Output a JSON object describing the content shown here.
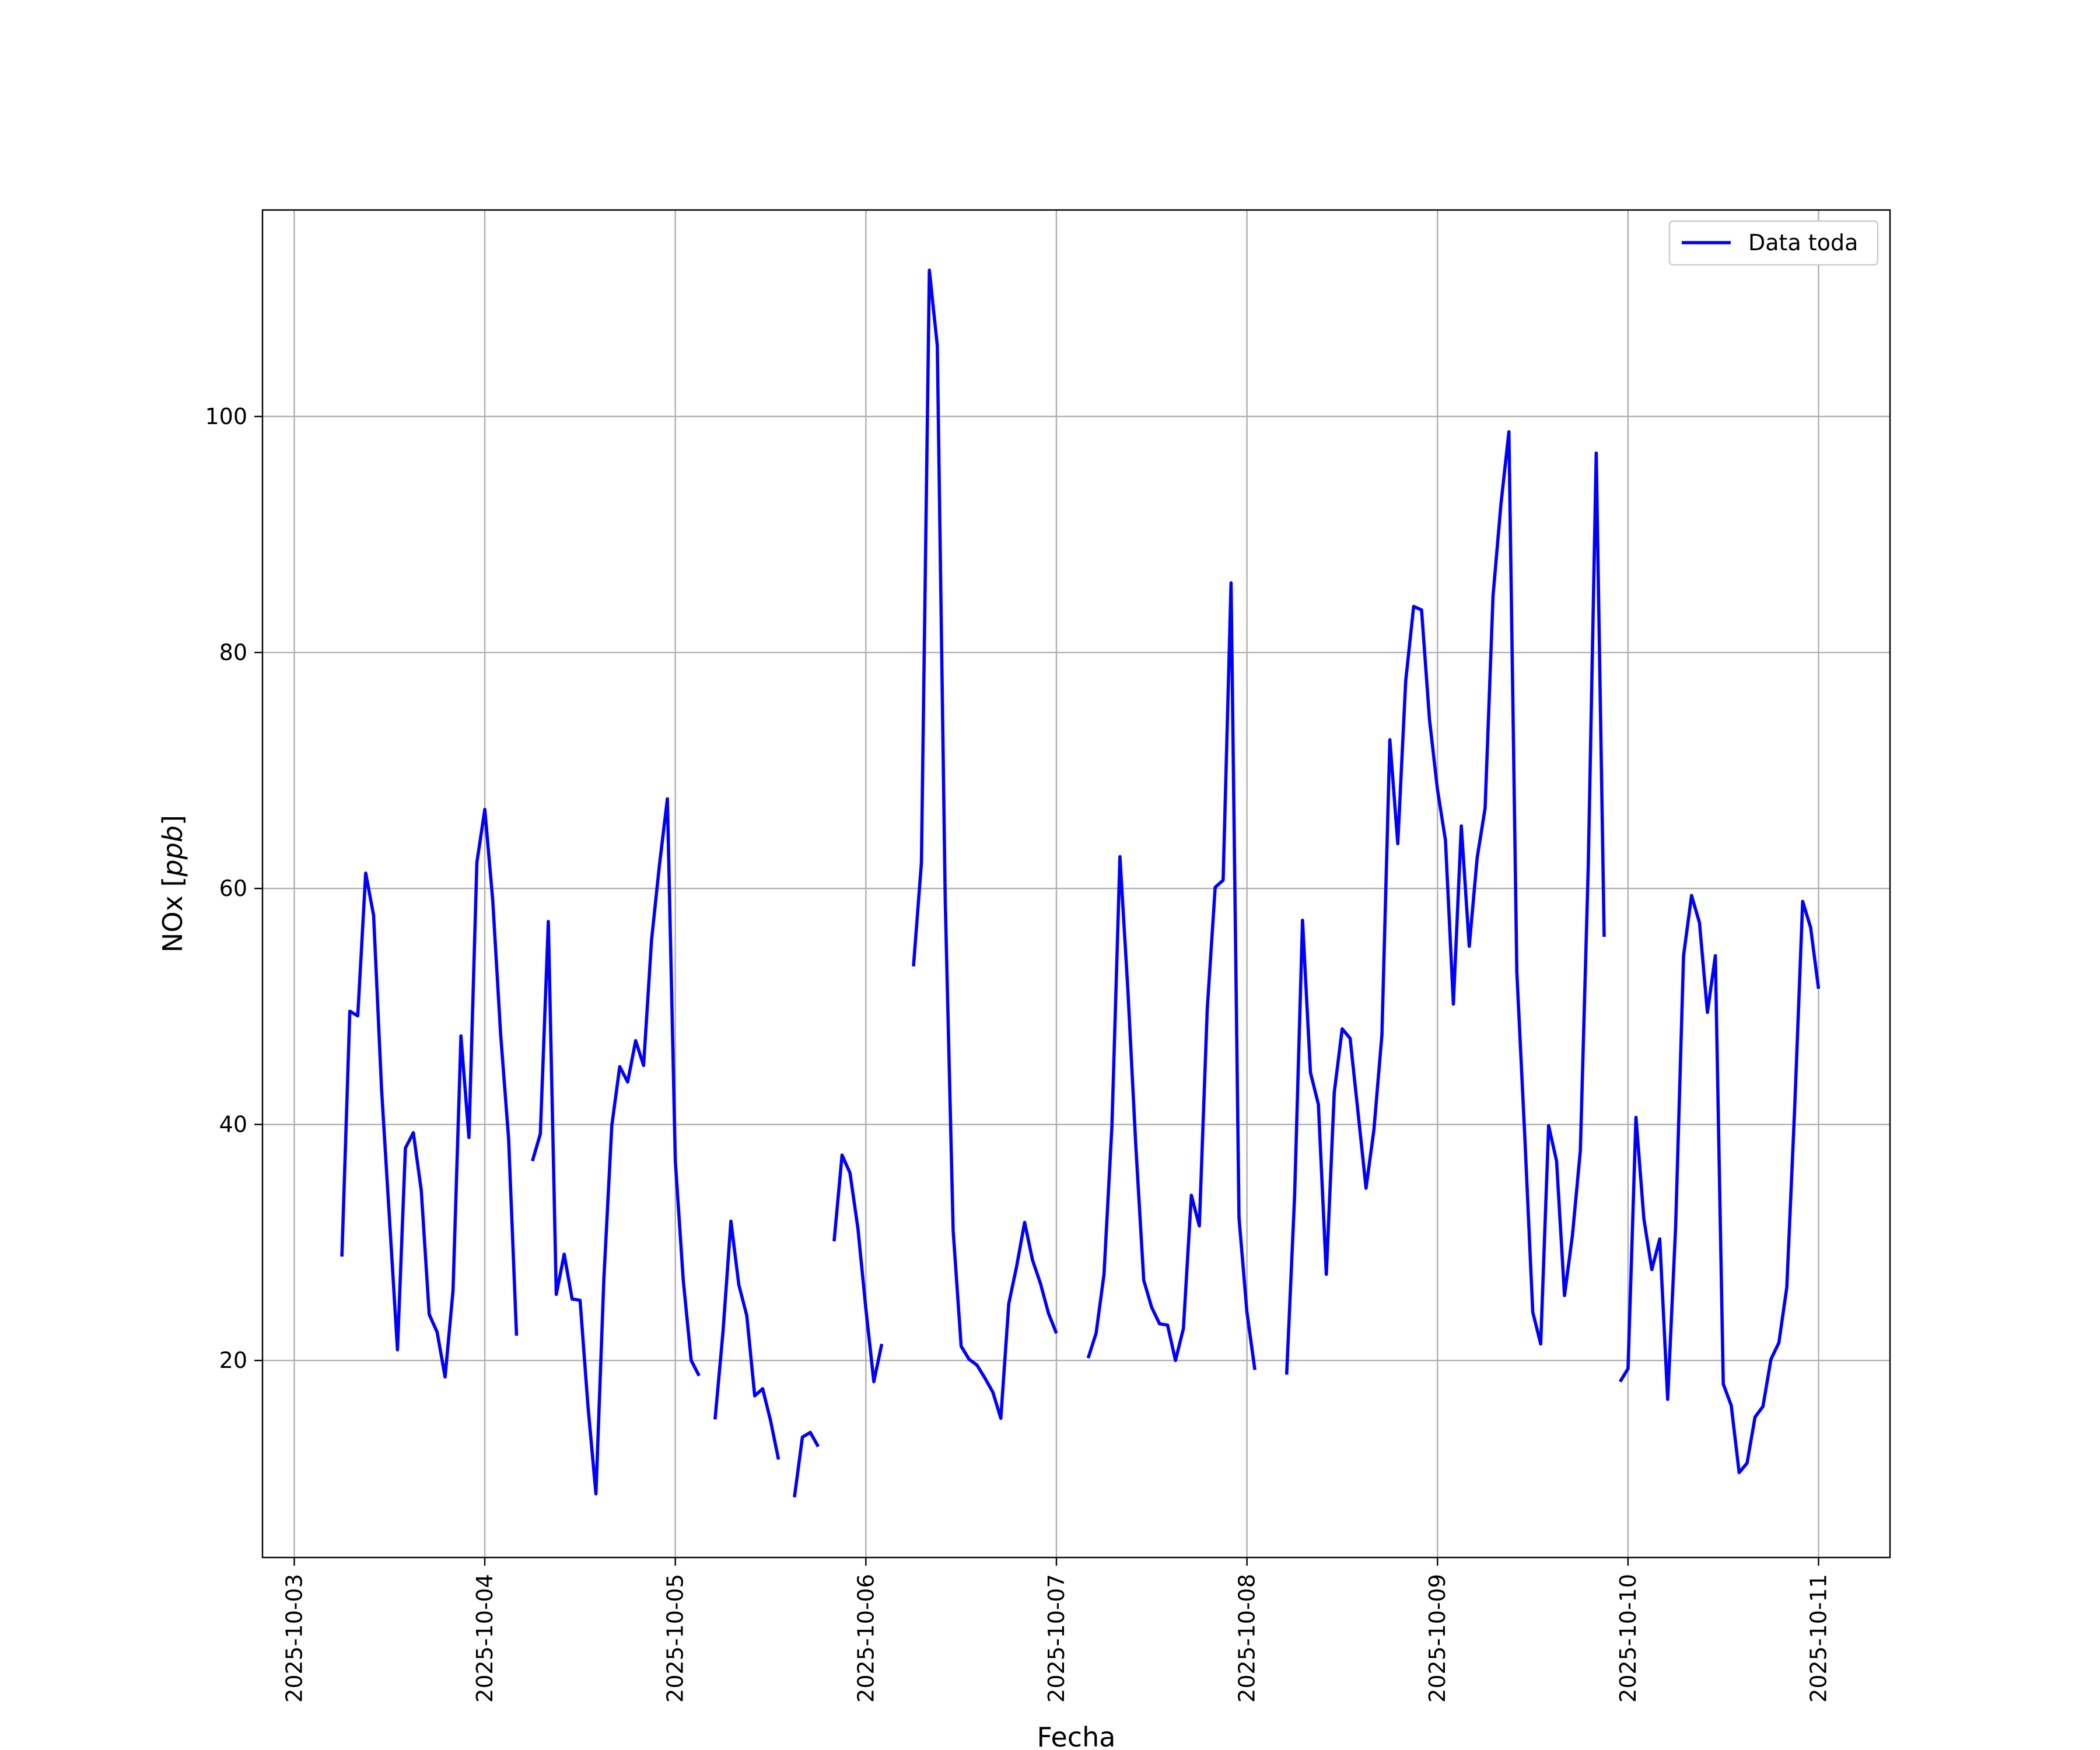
{
  "chart_data": {
    "type": "line",
    "title": "",
    "xlabel": "Fecha",
    "ylabel_main": "NOx [",
    "ylabel_unit": "ppb",
    "ylabel_close": "]",
    "xlim": [
      "2025-10-02T20:00",
      "2025-10-11T09:00"
    ],
    "ylim": [
      3.3,
      117.5
    ],
    "x_ticks": [
      "2025-10-03",
      "2025-10-04",
      "2025-10-05",
      "2025-10-06",
      "2025-10-07",
      "2025-10-08",
      "2025-10-09",
      "2025-10-10",
      "2025-10-11"
    ],
    "y_ticks": [
      20,
      40,
      60,
      80,
      100
    ],
    "y_tick_labels": [
      "20",
      "40",
      "60",
      "80",
      "100"
    ],
    "grid": true,
    "legend": {
      "position": "top-right",
      "entries": [
        "Data toda"
      ]
    },
    "colors": {
      "series": "#0000ff",
      "grid": "#b0b0b0"
    },
    "series": [
      {
        "name": "Data toda",
        "segments": [
          [
            [
              "2025-10-03T06:00",
              28.8
            ],
            [
              "2025-10-03T07:00",
              49.6
            ],
            [
              "2025-10-03T08:00",
              49.2
            ],
            [
              "2025-10-03T09:00",
              61.3
            ],
            [
              "2025-10-03T10:00",
              57.7
            ],
            [
              "2025-10-03T11:00",
              43.0
            ],
            [
              "2025-10-03T13:00",
              20.9
            ],
            [
              "2025-10-03T14:00",
              38.0
            ],
            [
              "2025-10-03T15:00",
              39.3
            ],
            [
              "2025-10-03T16:00",
              34.4
            ],
            [
              "2025-10-03T17:00",
              23.9
            ],
            [
              "2025-10-03T18:00",
              22.4
            ],
            [
              "2025-10-03T19:00",
              18.6
            ],
            [
              "2025-10-03T20:00",
              25.9
            ],
            [
              "2025-10-03T21:00",
              47.5
            ],
            [
              "2025-10-03T22:00",
              38.9
            ],
            [
              "2025-10-03T23:00",
              62.2
            ],
            [
              "2025-10-04T00:00",
              66.7
            ],
            [
              "2025-10-04T01:00",
              59.0
            ],
            [
              "2025-10-04T02:00",
              47.6
            ],
            [
              "2025-10-04T03:00",
              38.8
            ],
            [
              "2025-10-04T04:00",
              22.1
            ]
          ],
          [
            [
              "2025-10-04T06:00",
              36.9
            ],
            [
              "2025-10-04T07:00",
              39.2
            ],
            [
              "2025-10-04T08:00",
              57.2
            ],
            [
              "2025-10-04T09:00",
              25.6
            ],
            [
              "2025-10-04T10:00",
              29.0
            ],
            [
              "2025-10-04T11:00",
              25.2
            ],
            [
              "2025-10-04T12:00",
              25.1
            ],
            [
              "2025-10-04T13:00",
              16.1
            ],
            [
              "2025-10-04T14:00",
              8.7
            ],
            [
              "2025-10-04T15:00",
              26.9
            ],
            [
              "2025-10-04T16:00",
              39.9
            ],
            [
              "2025-10-04T17:00",
              44.9
            ],
            [
              "2025-10-04T18:00",
              43.6
            ],
            [
              "2025-10-04T19:00",
              47.1
            ],
            [
              "2025-10-04T20:00",
              45.0
            ],
            [
              "2025-10-04T21:00",
              55.6
            ],
            [
              "2025-10-04T22:00",
              62.0
            ],
            [
              "2025-10-04T23:00",
              67.6
            ],
            [
              "2025-10-05T00:00",
              36.9
            ],
            [
              "2025-10-05T01:00",
              26.8
            ],
            [
              "2025-10-05T02:00",
              20.0
            ],
            [
              "2025-10-05T03:00",
              18.7
            ]
          ],
          [
            [
              "2025-10-05T05:00",
              15.0
            ],
            [
              "2025-10-05T06:00",
              22.4
            ],
            [
              "2025-10-05T07:00",
              31.8
            ],
            [
              "2025-10-05T08:00",
              26.4
            ],
            [
              "2025-10-05T09:00",
              23.8
            ],
            [
              "2025-10-05T10:00",
              17.0
            ],
            [
              "2025-10-05T11:00",
              17.6
            ],
            [
              "2025-10-05T12:00",
              14.9
            ],
            [
              "2025-10-05T13:00",
              11.6
            ]
          ],
          [
            [
              "2025-10-05T15:00",
              8.4
            ],
            [
              "2025-10-05T16:00",
              13.5
            ],
            [
              "2025-10-05T17:00",
              13.9
            ],
            [
              "2025-10-05T18:00",
              12.7
            ]
          ],
          [
            [
              "2025-10-05T20:00",
              30.1
            ],
            [
              "2025-10-05T21:00",
              37.4
            ],
            [
              "2025-10-05T22:00",
              35.9
            ],
            [
              "2025-10-05T23:00",
              31.2
            ],
            [
              "2025-10-06T00:00",
              24.4
            ],
            [
              "2025-10-06T01:00",
              18.2
            ],
            [
              "2025-10-06T02:00",
              21.4
            ]
          ],
          [
            [
              "2025-10-06T06:00",
              53.4
            ],
            [
              "2025-10-06T07:00",
              62.2
            ],
            [
              "2025-10-06T08:00",
              112.4
            ],
            [
              "2025-10-06T09:00",
              106.0
            ],
            [
              "2025-10-06T10:00",
              59.0
            ],
            [
              "2025-10-06T11:00",
              31.0
            ],
            [
              "2025-10-06T12:00",
              21.2
            ],
            [
              "2025-10-06T13:00",
              20.1
            ],
            [
              "2025-10-06T14:00",
              19.6
            ],
            [
              "2025-10-06T15:00",
              18.5
            ],
            [
              "2025-10-06T16:00",
              17.3
            ],
            [
              "2025-10-06T17:00",
              15.1
            ],
            [
              "2025-10-06T18:00",
              24.8
            ],
            [
              "2025-10-06T19:00",
              28.0
            ],
            [
              "2025-10-06T20:00",
              31.7
            ],
            [
              "2025-10-06T21:00",
              28.5
            ],
            [
              "2025-10-06T22:00",
              26.5
            ],
            [
              "2025-10-06T23:00",
              24.0
            ],
            [
              "2025-10-07T00:00",
              22.3
            ]
          ],
          [
            [
              "2025-10-07T04:00",
              20.2
            ],
            [
              "2025-10-07T05:00",
              22.3
            ],
            [
              "2025-10-07T06:00",
              27.3
            ],
            [
              "2025-10-07T07:00",
              39.9
            ],
            [
              "2025-10-07T08:00",
              62.7
            ],
            [
              "2025-10-07T09:00",
              51.4
            ],
            [
              "2025-10-07T10:00",
              38.2
            ],
            [
              "2025-10-07T11:00",
              26.8
            ],
            [
              "2025-10-07T12:00",
              24.5
            ],
            [
              "2025-10-07T13:00",
              23.1
            ],
            [
              "2025-10-07T14:00",
              23.0
            ],
            [
              "2025-10-07T15:00",
              20.0
            ],
            [
              "2025-10-07T16:00",
              22.7
            ],
            [
              "2025-10-07T17:00",
              34.0
            ],
            [
              "2025-10-07T18:00",
              31.4
            ],
            [
              "2025-10-07T19:00",
              49.8
            ],
            [
              "2025-10-07T20:00",
              60.1
            ],
            [
              "2025-10-07T21:00",
              60.7
            ],
            [
              "2025-10-07T22:00",
              85.9
            ],
            [
              "2025-10-07T23:00",
              32.1
            ],
            [
              "2025-10-08T00:00",
              24.1
            ],
            [
              "2025-10-08T01:00",
              19.2
            ]
          ],
          [
            [
              "2025-10-08T05:00",
              18.8
            ],
            [
              "2025-10-08T06:00",
              33.9
            ],
            [
              "2025-10-08T07:00",
              57.3
            ],
            [
              "2025-10-08T08:00",
              44.4
            ],
            [
              "2025-10-08T09:00",
              41.7
            ],
            [
              "2025-10-08T10:00",
              27.3
            ],
            [
              "2025-10-08T11:00",
              42.7
            ],
            [
              "2025-10-08T12:00",
              48.1
            ],
            [
              "2025-10-08T13:00",
              47.3
            ],
            [
              "2025-10-08T14:00",
              41.0
            ],
            [
              "2025-10-08T15:00",
              34.6
            ],
            [
              "2025-10-08T16:00",
              39.6
            ],
            [
              "2025-10-08T17:00",
              47.6
            ],
            [
              "2025-10-08T18:00",
              72.6
            ],
            [
              "2025-10-08T19:00",
              63.8
            ],
            [
              "2025-10-08T20:00",
              77.6
            ],
            [
              "2025-10-08T21:00",
              83.9
            ],
            [
              "2025-10-08T22:00",
              83.6
            ],
            [
              "2025-10-08T23:00",
              74.3
            ],
            [
              "2025-10-09T00:00",
              68.4
            ],
            [
              "2025-10-09T01:00",
              64.1
            ],
            [
              "2025-10-09T02:00",
              50.2
            ],
            [
              "2025-10-09T03:00",
              65.3
            ],
            [
              "2025-10-09T04:00",
              55.1
            ],
            [
              "2025-10-09T05:00",
              62.6
            ],
            [
              "2025-10-09T06:00",
              66.8
            ],
            [
              "2025-10-09T07:00",
              84.8
            ],
            [
              "2025-10-09T08:00",
              92.6
            ],
            [
              "2025-10-09T09:00",
              98.7
            ],
            [
              "2025-10-09T10:00",
              52.9
            ],
            [
              "2025-10-09T11:00",
              38.9
            ],
            [
              "2025-10-09T12:00",
              24.1
            ],
            [
              "2025-10-09T13:00",
              21.4
            ],
            [
              "2025-10-09T14:00",
              39.9
            ],
            [
              "2025-10-09T15:00",
              36.9
            ],
            [
              "2025-10-09T16:00",
              25.5
            ],
            [
              "2025-10-09T17:00",
              30.6
            ],
            [
              "2025-10-09T18:00",
              37.8
            ],
            [
              "2025-10-09T19:00",
              62.0
            ],
            [
              "2025-10-09T20:00",
              96.9
            ],
            [
              "2025-10-09T21:00",
              55.9
            ]
          ],
          [
            [
              "2025-10-09T23:00",
              18.2
            ],
            [
              "2025-10-10T00:00",
              19.3
            ],
            [
              "2025-10-10T01:00",
              40.6
            ],
            [
              "2025-10-10T02:00",
              32.0
            ],
            [
              "2025-10-10T03:00",
              27.7
            ],
            [
              "2025-10-10T04:00",
              30.3
            ],
            [
              "2025-10-10T05:00",
              16.7
            ],
            [
              "2025-10-10T06:00",
              31.3
            ],
            [
              "2025-10-10T07:00",
              54.3
            ],
            [
              "2025-10-10T08:00",
              59.4
            ],
            [
              "2025-10-10T09:00",
              57.1
            ],
            [
              "2025-10-10T10:00",
              49.5
            ],
            [
              "2025-10-10T11:00",
              54.3
            ],
            [
              "2025-10-10T12:00",
              18.0
            ],
            [
              "2025-10-10T13:00",
              16.2
            ],
            [
              "2025-10-10T14:00",
              10.5
            ],
            [
              "2025-10-10T15:00",
              11.3
            ],
            [
              "2025-10-10T16:00",
              15.2
            ],
            [
              "2025-10-10T17:00",
              16.1
            ],
            [
              "2025-10-10T18:00",
              20.1
            ],
            [
              "2025-10-10T19:00",
              21.5
            ],
            [
              "2025-10-10T20:00",
              26.2
            ],
            [
              "2025-10-10T21:00",
              41.5
            ],
            [
              "2025-10-10T22:00",
              58.9
            ],
            [
              "2025-10-10T23:00",
              56.7
            ],
            [
              "2025-10-11T00:00",
              51.5
            ]
          ]
        ]
      }
    ]
  }
}
